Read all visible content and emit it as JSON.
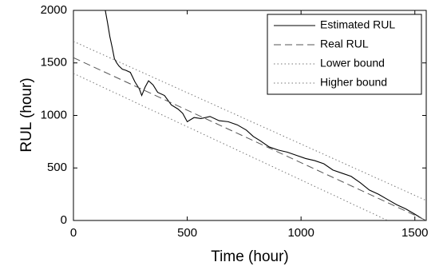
{
  "chart_data": {
    "type": "line",
    "xlabel": "Time (hour)",
    "ylabel": "RUL (hour)",
    "xlim": [
      0,
      1550
    ],
    "ylim": [
      0,
      2000
    ],
    "xticks": [
      0,
      500,
      1000,
      1500
    ],
    "yticks": [
      0,
      500,
      1000,
      1500,
      2000
    ],
    "legend": "upper right",
    "series": [
      {
        "name": "Estimated RUL",
        "color": "#000000",
        "style": "solid",
        "x": [
          140,
          150,
          160,
          170,
          180,
          190,
          200,
          215,
          230,
          250,
          270,
          290,
          300,
          315,
          330,
          350,
          370,
          400,
          430,
          460,
          480,
          500,
          530,
          560,
          600,
          640,
          680,
          720,
          760,
          790,
          820,
          860,
          900,
          940,
          980,
          1020,
          1060,
          1100,
          1140,
          1180,
          1220,
          1260,
          1300,
          1340,
          1380,
          1420,
          1460,
          1500,
          1530
        ],
        "values": [
          2000,
          1880,
          1750,
          1650,
          1540,
          1500,
          1470,
          1440,
          1430,
          1410,
          1320,
          1250,
          1190,
          1270,
          1330,
          1290,
          1220,
          1190,
          1100,
          1060,
          1020,
          940,
          980,
          970,
          990,
          950,
          940,
          910,
          860,
          800,
          760,
          700,
          670,
          650,
          620,
          590,
          570,
          540,
          480,
          450,
          420,
          360,
          290,
          250,
          200,
          150,
          110,
          60,
          20
        ]
      },
      {
        "name": "Real RUL",
        "color": "#555555",
        "style": "dashed",
        "x": [
          0,
          1550
        ],
        "values": [
          1550,
          0
        ]
      },
      {
        "name": "Lower bound",
        "color": "#777777",
        "style": "dotted",
        "x": [
          0,
          1380
        ],
        "values": [
          1400,
          0
        ]
      },
      {
        "name": "Higher bound",
        "color": "#777777",
        "style": "dotted",
        "x": [
          0,
          1550
        ],
        "values": [
          1705,
          190
        ]
      }
    ]
  }
}
